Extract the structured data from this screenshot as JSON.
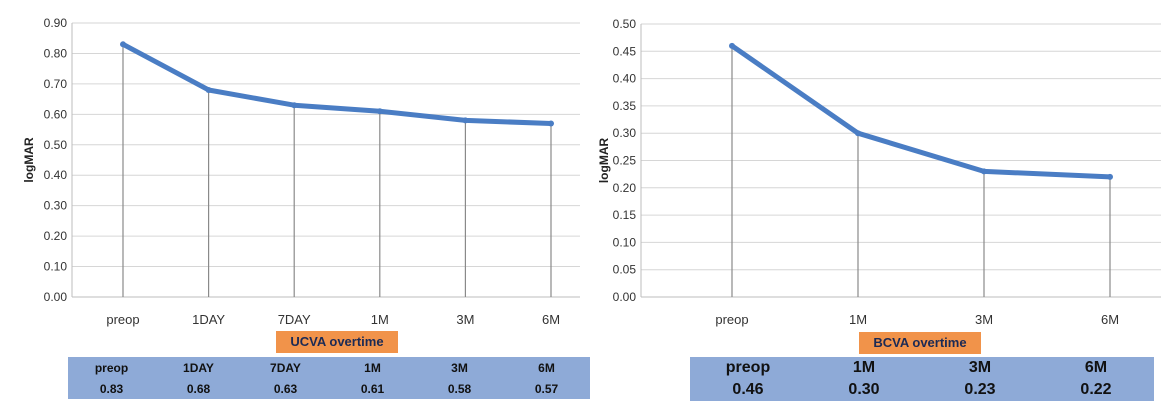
{
  "colors": {
    "line": "#4a7dc4",
    "grid": "#d6d6d6",
    "drop": "#8a8a8a",
    "axis": "#bdbdbd",
    "title_bg": "#f1934a",
    "table_bg": "#8eaad7"
  },
  "chart_data": [
    {
      "type": "line",
      "title": "UCVA overtime",
      "xlabel": "",
      "ylabel": "logMAR",
      "categories": [
        "preop",
        "1DAY",
        "7DAY",
        "1M",
        "3M",
        "6M"
      ],
      "series": [
        {
          "values": [
            0.83,
            0.68,
            0.63,
            0.61,
            0.58,
            0.57
          ]
        }
      ],
      "ylim": [
        0,
        0.9
      ],
      "yticks": [
        "0.00",
        "0.10",
        "0.20",
        "0.30",
        "0.40",
        "0.50",
        "0.60",
        "0.70",
        "0.80",
        "0.90"
      ],
      "grid": true,
      "table": {
        "headers": [
          "preop",
          "1DAY",
          "7DAY",
          "1M",
          "3M",
          "6M"
        ],
        "values": [
          "0.83",
          "0.68",
          "0.63",
          "0.61",
          "0.58",
          "0.57"
        ]
      }
    },
    {
      "type": "line",
      "title": "BCVA overtime",
      "xlabel": "",
      "ylabel": "logMAR",
      "categories": [
        "preop",
        "1M",
        "3M",
        "6M"
      ],
      "series": [
        {
          "values": [
            0.46,
            0.3,
            0.23,
            0.22
          ]
        }
      ],
      "ylim": [
        0,
        0.5
      ],
      "yticks": [
        "0.00",
        "0.05",
        "0.10",
        "0.15",
        "0.20",
        "0.25",
        "0.30",
        "0.35",
        "0.40",
        "0.45",
        "0.50"
      ],
      "grid": true,
      "table": {
        "headers": [
          "preop",
          "1M",
          "3M",
          "6M"
        ],
        "values": [
          "0.46",
          "0.30",
          "0.23",
          "0.22"
        ]
      }
    }
  ]
}
